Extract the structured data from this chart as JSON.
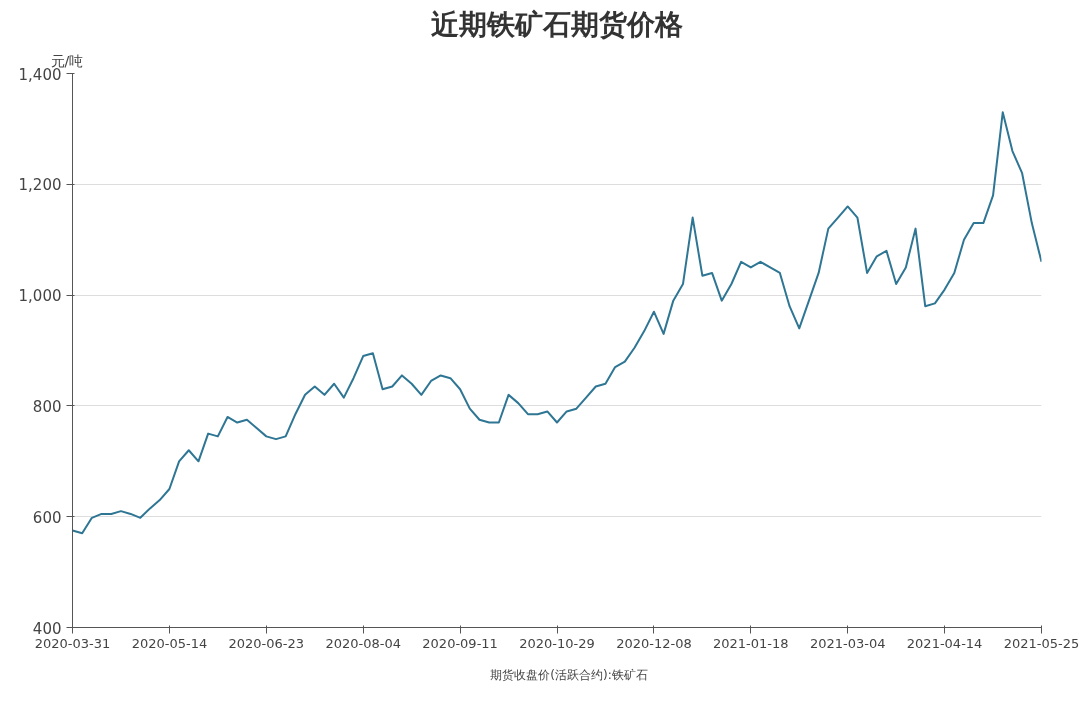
{
  "chart_data": {
    "type": "line",
    "title": "近期铁矿石期货价格",
    "ylabel": "元/吨",
    "categories": [
      "2020-03-31",
      null,
      null,
      null,
      null,
      null,
      null,
      null,
      null,
      null,
      "2020-05-14",
      null,
      null,
      null,
      null,
      null,
      null,
      null,
      null,
      null,
      "2020-06-23",
      null,
      null,
      null,
      null,
      null,
      null,
      null,
      null,
      null,
      "2020-08-04",
      null,
      null,
      null,
      null,
      null,
      null,
      null,
      null,
      null,
      "2020-09-11",
      null,
      null,
      null,
      null,
      null,
      null,
      null,
      null,
      null,
      "2020-10-29",
      null,
      null,
      null,
      null,
      null,
      null,
      null,
      null,
      null,
      "2020-12-08",
      null,
      null,
      null,
      null,
      null,
      null,
      null,
      null,
      null,
      "2021-01-18",
      null,
      null,
      null,
      null,
      null,
      null,
      null,
      null,
      null,
      "2021-03-04",
      null,
      null,
      null,
      null,
      null,
      null,
      null,
      null,
      null,
      "2021-04-14",
      null,
      null,
      null,
      null,
      null,
      null,
      null,
      null,
      null,
      "2021-05-25"
    ],
    "series": [
      {
        "name": "期货收盘价(活跃合约):铁矿石",
        "color": "#2e7694",
        "values": [
          575,
          570,
          598,
          605,
          605,
          610,
          605,
          598,
          615,
          630,
          650,
          700,
          720,
          700,
          750,
          745,
          780,
          770,
          775,
          760,
          745,
          740,
          745,
          785,
          820,
          835,
          820,
          840,
          815,
          850,
          890,
          895,
          830,
          835,
          855,
          840,
          820,
          845,
          855,
          850,
          830,
          795,
          775,
          770,
          770,
          820,
          805,
          785,
          785,
          790,
          770,
          790,
          795,
          815,
          835,
          840,
          870,
          880,
          905,
          935,
          970,
          930,
          990,
          1020,
          1140,
          1035,
          1040,
          990,
          1020,
          1060,
          1050,
          1060,
          1050,
          1040,
          980,
          940,
          990,
          1040,
          1120,
          1140,
          1160,
          1140,
          1040,
          1070,
          1080,
          1020,
          1050,
          1120,
          980,
          985,
          1010,
          1040,
          1100,
          1130,
          1130,
          1180,
          1330,
          1260,
          1220,
          1130,
          1060
        ]
      }
    ],
    "ylim": [
      400,
      1400
    ],
    "yticks": [
      400,
      600,
      800,
      {
        "value": 1000,
        "label": "1,000"
      },
      {
        "value": 1200,
        "label": "1,200"
      },
      {
        "value": 1400,
        "label": "1,400"
      }
    ],
    "grid": "y",
    "legend": "bottom"
  }
}
